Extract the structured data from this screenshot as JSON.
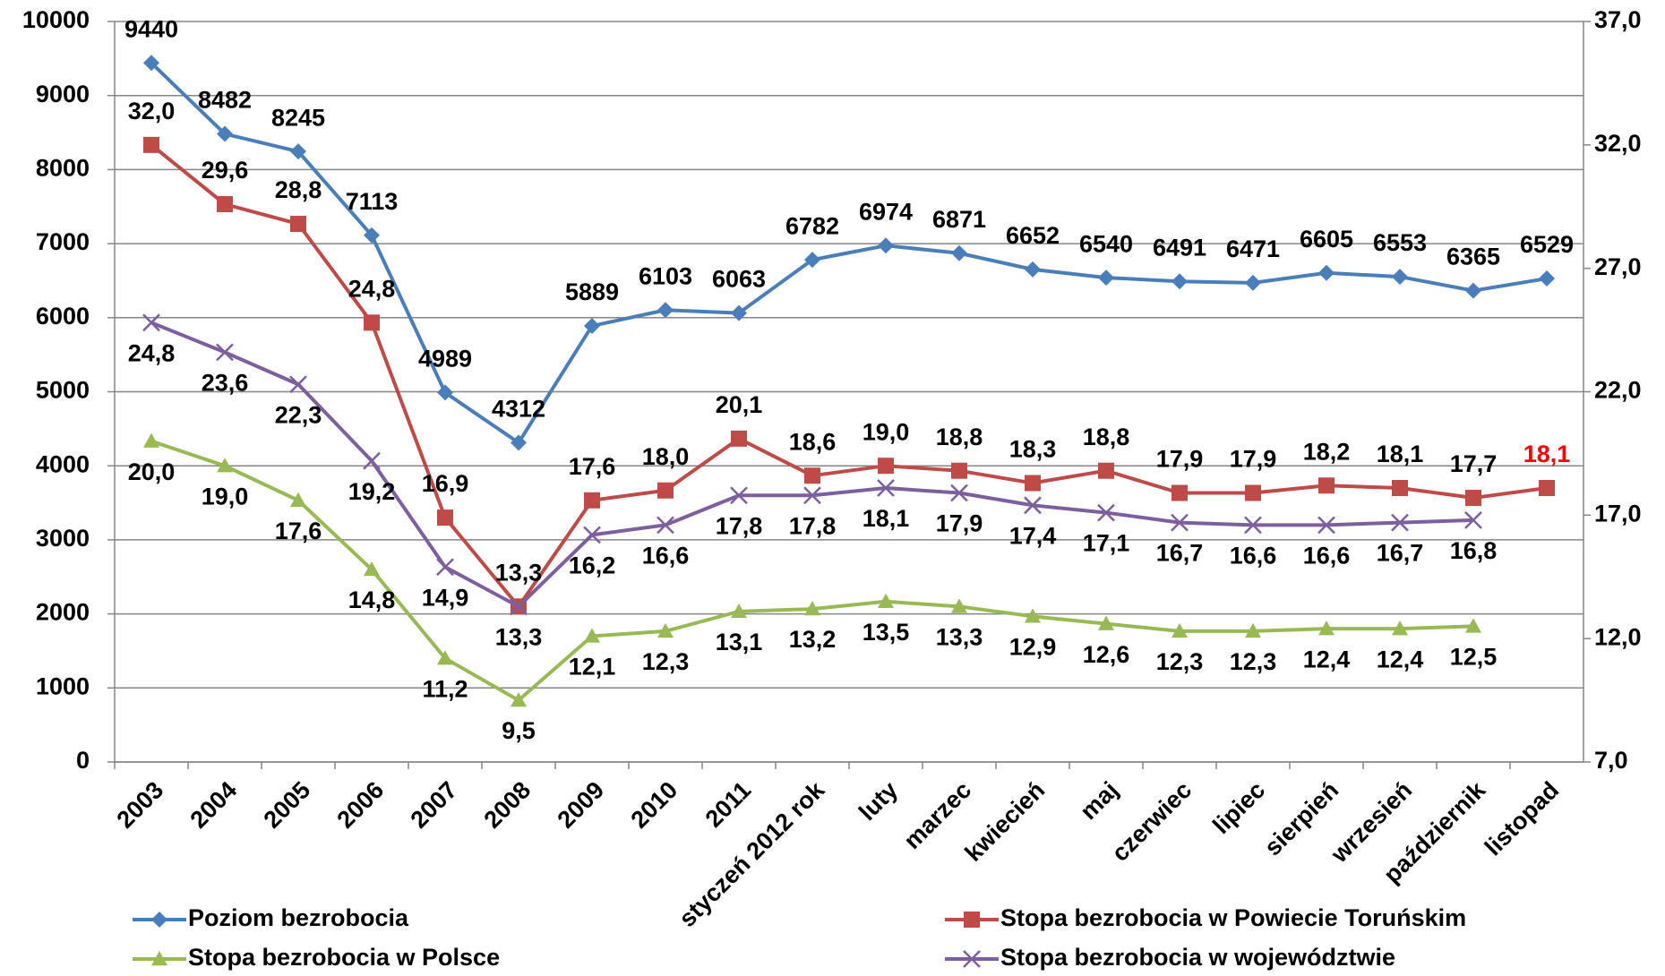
{
  "chart_data": {
    "type": "line",
    "categories": [
      "2003",
      "2004",
      "2005",
      "2006",
      "2007",
      "2008",
      "2009",
      "2010",
      "2011",
      "styczeń 2012 rok",
      "luty",
      "marzec",
      "kwiecień",
      "maj",
      "czerwiec",
      "lipiec",
      "sierpień",
      "wrzesień",
      "październik",
      "listopad"
    ],
    "ylim": [
      0,
      10000
    ],
    "yticks": [
      0,
      1000,
      2000,
      3000,
      4000,
      5000,
      6000,
      7000,
      8000,
      9000,
      10000
    ],
    "y2lim": [
      7,
      37
    ],
    "y2ticks": [
      {
        "value": 7,
        "label": "7,0"
      },
      {
        "value": 12,
        "label": "12,0"
      },
      {
        "value": 17,
        "label": "17,0"
      },
      {
        "value": 22,
        "label": "22,0"
      },
      {
        "value": 27,
        "label": "27,0"
      },
      {
        "value": 32,
        "label": "32,0"
      },
      {
        "value": 37,
        "label": "37,0"
      }
    ],
    "grid": true,
    "legend": "bottom",
    "series": [
      {
        "name": "Poziom bezrobocia",
        "color": "#4a7ebb",
        "marker": "diamond",
        "values": [
          9440,
          8482,
          8245,
          7113,
          4989,
          4312,
          5889,
          6103,
          6063,
          6782,
          6974,
          6871,
          6652,
          6540,
          6491,
          6471,
          6605,
          6553,
          6365,
          6529
        ]
      },
      {
        "name": "Stopa bezrobocia w Powiecie Toruńskim",
        "color": "#be4b48",
        "marker": "square",
        "axis": "y2",
        "values": [
          32.0,
          29.6,
          28.8,
          24.8,
          16.9,
          13.3,
          17.6,
          18.0,
          20.1,
          18.6,
          19.0,
          18.8,
          18.3,
          18.8,
          17.9,
          17.9,
          18.2,
          18.1,
          17.7,
          18.1
        ],
        "value_labels": [
          "32,0",
          "29,6",
          "28,8",
          "24,8",
          "16,9",
          "13,3",
          "17,6",
          "18,0",
          "20,1",
          "18,6",
          "19,0",
          "18,8",
          "18,3",
          "18,8",
          "17,9",
          "17,9",
          "18,2",
          "18,1",
          "17,7",
          "18,1"
        ]
      },
      {
        "name": "Stopa bezrobocia w Polsce",
        "color": "#98b954",
        "marker": "triangle",
        "axis": "y2",
        "values": [
          20.0,
          19.0,
          17.6,
          14.8,
          11.2,
          9.5,
          12.1,
          12.3,
          13.1,
          13.2,
          13.5,
          13.3,
          12.9,
          12.6,
          12.3,
          12.3,
          12.4,
          12.4,
          12.5,
          null
        ],
        "value_labels": [
          "20,0",
          "19,0",
          "17,6",
          "14,8",
          "11,2",
          "9,5",
          "12,1",
          "12,3",
          "13,1",
          "13,2",
          "13,5",
          "13,3",
          "12,9",
          "12,6",
          "12,3",
          "12,3",
          "12,4",
          "12,4",
          "12,5",
          null
        ]
      },
      {
        "name": "Stopa bezrobocia w województwie",
        "color": "#7d5fa0",
        "marker": "x",
        "axis": "y2",
        "values": [
          24.8,
          23.6,
          22.3,
          19.2,
          14.9,
          13.3,
          16.2,
          16.6,
          17.8,
          17.8,
          18.1,
          17.9,
          17.4,
          17.1,
          16.7,
          16.6,
          16.6,
          16.7,
          16.8,
          null
        ],
        "value_labels": [
          "24,8",
          "23,6",
          "22,3",
          "19,2",
          "14,9",
          "13,3",
          "16,2",
          "16,6",
          "17,8",
          "17,8",
          "18,1",
          "17,9",
          "17,4",
          "17,1",
          "16,7",
          "16,6",
          "16,6",
          "16,7",
          "16,8",
          null
        ]
      }
    ]
  }
}
